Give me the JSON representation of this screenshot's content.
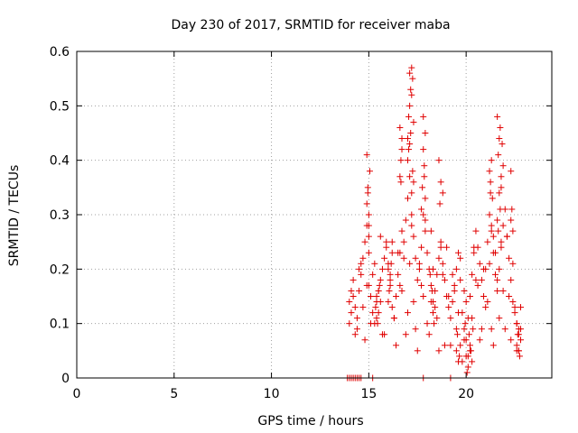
{
  "chart_data": {
    "type": "scatter",
    "title": "Day 230 of 2017, SRMTID for receiver maba",
    "xlabel": "GPS time / hours",
    "ylabel": "SRMTID / TECUs",
    "xlim": [
      0,
      24.4
    ],
    "ylim": [
      0,
      0.6
    ],
    "xticks": [
      0,
      5,
      10,
      15,
      20
    ],
    "xtick_labels": [
      "0",
      "5",
      "10",
      "15",
      "20"
    ],
    "yticks": [
      0,
      0.1,
      0.2,
      0.3,
      0.4,
      0.5,
      0.6
    ],
    "ytick_labels": [
      "0",
      "0.1",
      "0.2",
      "0.3",
      "0.4",
      "0.5",
      "0.6"
    ],
    "grid": true,
    "marker": "plus",
    "color": "#e00000",
    "series": [
      {
        "x": [
          13.9,
          14.0,
          14.1,
          14.2,
          14.3,
          14.4,
          14.5,
          14.6,
          15.2,
          17.8,
          19.2,
          14.0,
          14.1,
          14.2,
          14.3,
          14.4,
          14.5,
          14.6,
          14.7,
          14.8,
          14.9,
          15.0,
          15.1,
          15.2,
          15.3,
          15.4,
          15.5,
          15.6,
          15.7,
          15.8,
          15.9,
          16.0,
          16.1,
          16.2,
          16.3,
          16.4,
          16.5,
          16.6,
          16.7,
          16.8,
          16.9,
          17.0,
          17.1,
          17.2,
          17.3,
          17.4,
          17.5,
          17.6,
          17.7,
          17.8,
          17.9,
          18.0,
          18.1,
          18.2,
          18.3,
          18.4,
          18.5,
          18.6,
          18.7,
          18.8,
          18.9,
          19.0,
          19.1,
          19.2,
          19.3,
          19.4,
          19.5,
          19.6,
          19.7,
          19.8,
          19.9,
          20.0,
          20.1,
          20.2,
          20.3,
          20.4,
          20.5,
          20.6,
          20.7,
          20.8,
          20.9,
          21.0,
          21.1,
          21.2,
          21.3,
          21.4,
          21.5,
          21.6,
          21.7,
          21.8,
          21.9,
          22.0,
          22.1,
          22.2,
          22.3,
          22.4,
          22.5,
          22.6,
          22.7,
          22.8,
          14.0,
          14.2,
          14.4,
          14.6,
          14.8,
          15.0,
          15.2,
          15.4,
          15.6,
          15.8,
          16.0,
          16.2,
          16.4,
          16.6,
          16.8,
          17.0,
          17.2,
          17.4,
          17.6,
          17.8,
          18.0,
          18.2,
          18.4,
          18.6,
          18.8,
          19.0,
          19.2,
          19.4,
          19.6,
          19.8,
          20.0,
          20.2,
          20.4,
          20.6,
          20.8,
          21.0,
          21.2,
          21.4,
          21.6,
          21.8,
          22.0,
          22.2,
          22.4,
          22.6,
          22.8,
          14.1,
          14.3,
          14.5,
          14.7,
          14.9,
          15.1,
          15.3,
          15.5,
          15.7,
          15.9,
          16.1,
          16.3,
          16.5,
          16.7,
          16.9,
          17.1,
          17.3,
          17.5,
          17.7,
          17.9,
          18.1,
          18.3,
          18.5,
          18.7,
          18.9,
          19.1,
          19.3,
          19.5,
          19.7,
          19.9,
          20.1,
          20.3,
          20.5,
          20.7,
          20.9,
          21.1,
          21.3,
          21.5,
          21.7,
          21.9,
          22.1,
          22.3,
          22.5,
          22.7,
          14.9,
          14.95,
          15.0,
          15.05,
          15.0,
          14.9,
          14.95,
          15.0,
          16.6,
          16.65,
          16.7,
          16.6,
          16.7,
          16.65,
          17.0,
          17.05,
          17.1,
          17.15,
          17.2,
          17.25,
          17.3,
          17.1,
          17.2,
          17.15,
          17.05,
          17.25,
          17.2,
          17.1,
          17.3,
          17.0,
          17.8,
          17.85,
          17.9,
          17.75,
          17.8,
          17.9,
          17.7,
          17.85,
          18.6,
          18.7,
          18.65,
          18.8,
          21.2,
          21.25,
          21.3,
          21.2,
          21.35,
          21.3,
          21.25,
          21.4,
          21.6,
          21.7,
          21.65,
          21.75,
          21.8,
          21.85,
          21.9,
          21.7,
          21.75,
          21.8,
          21.6,
          21.65,
          22.3,
          22.35,
          22.4,
          22.3,
          20.0,
          20.1,
          20.2,
          20.3,
          20.15,
          20.25,
          19.9,
          20.05,
          20.35,
          19.95,
          19.5,
          19.6,
          19.7,
          19.55,
          19.65,
          15.4,
          15.5,
          15.6,
          15.45,
          15.55,
          15.35,
          16.0,
          16.1,
          16.2,
          16.05,
          16.15,
          18.2,
          18.3,
          18.25,
          18.35,
          18.15,
          22.6,
          22.7,
          22.65,
          22.75,
          22.8,
          22.6,
          22.7
        ],
        "y": [
          0.0,
          0.0,
          0.0,
          0.0,
          0.0,
          0.0,
          0.0,
          0.0,
          0.0,
          0.0,
          0.0,
          0.14,
          0.12,
          0.15,
          0.13,
          0.11,
          0.16,
          0.19,
          0.22,
          0.25,
          0.28,
          0.17,
          0.15,
          0.12,
          0.1,
          0.14,
          0.16,
          0.18,
          0.2,
          0.22,
          0.24,
          0.21,
          0.17,
          0.13,
          0.11,
          0.15,
          0.19,
          0.23,
          0.27,
          0.25,
          0.29,
          0.33,
          0.37,
          0.3,
          0.26,
          0.22,
          0.18,
          0.21,
          0.24,
          0.3,
          0.27,
          0.23,
          0.2,
          0.17,
          0.14,
          0.16,
          0.19,
          0.22,
          0.25,
          0.21,
          0.18,
          0.15,
          0.13,
          0.11,
          0.14,
          0.17,
          0.2,
          0.23,
          0.18,
          0.12,
          0.09,
          0.07,
          0.11,
          0.15,
          0.19,
          0.23,
          0.27,
          0.24,
          0.21,
          0.18,
          0.15,
          0.2,
          0.25,
          0.3,
          0.27,
          0.23,
          0.19,
          0.16,
          0.2,
          0.24,
          0.28,
          0.31,
          0.26,
          0.22,
          0.18,
          0.14,
          0.12,
          0.1,
          0.08,
          0.09,
          0.1,
          0.18,
          0.09,
          0.21,
          0.07,
          0.23,
          0.19,
          0.11,
          0.26,
          0.08,
          0.14,
          0.25,
          0.06,
          0.17,
          0.22,
          0.12,
          0.28,
          0.09,
          0.2,
          0.15,
          0.1,
          0.27,
          0.13,
          0.05,
          0.19,
          0.24,
          0.06,
          0.16,
          0.12,
          0.03,
          0.14,
          0.05,
          0.24,
          0.17,
          0.09,
          0.13,
          0.21,
          0.06,
          0.18,
          0.25,
          0.09,
          0.15,
          0.21,
          0.05,
          0.13,
          0.16,
          0.08,
          0.2,
          0.13,
          0.17,
          0.1,
          0.21,
          0.16,
          0.08,
          0.25,
          0.19,
          0.11,
          0.23,
          0.16,
          0.08,
          0.21,
          0.14,
          0.05,
          0.17,
          0.29,
          0.08,
          0.2,
          0.11,
          0.24,
          0.06,
          0.15,
          0.19,
          0.09,
          0.22,
          0.16,
          0.04,
          0.11,
          0.18,
          0.07,
          0.2,
          0.14,
          0.09,
          0.23,
          0.11,
          0.16,
          0.26,
          0.07,
          0.13,
          0.05,
          0.41,
          0.35,
          0.3,
          0.38,
          0.26,
          0.32,
          0.34,
          0.28,
          0.46,
          0.4,
          0.42,
          0.37,
          0.44,
          0.36,
          0.44,
          0.48,
          0.5,
          0.53,
          0.57,
          0.55,
          0.47,
          0.56,
          0.52,
          0.45,
          0.42,
          0.38,
          0.34,
          0.43,
          0.36,
          0.4,
          0.42,
          0.39,
          0.45,
          0.35,
          0.48,
          0.33,
          0.31,
          0.37,
          0.4,
          0.36,
          0.32,
          0.34,
          0.38,
          0.34,
          0.4,
          0.3,
          0.33,
          0.28,
          0.36,
          0.26,
          0.48,
          0.44,
          0.41,
          0.46,
          0.37,
          0.43,
          0.39,
          0.34,
          0.31,
          0.35,
          0.29,
          0.27,
          0.38,
          0.31,
          0.27,
          0.29,
          0.04,
          0.02,
          0.06,
          0.03,
          0.08,
          0.05,
          0.07,
          0.01,
          0.09,
          0.1,
          0.05,
          0.03,
          0.06,
          0.08,
          0.04,
          0.15,
          0.12,
          0.14,
          0.1,
          0.17,
          0.13,
          0.2,
          0.18,
          0.23,
          0.16,
          0.21,
          0.14,
          0.12,
          0.16,
          0.1,
          0.19,
          0.06,
          0.05,
          0.08,
          0.04,
          0.07,
          0.1,
          0.09
        ]
      }
    ]
  }
}
